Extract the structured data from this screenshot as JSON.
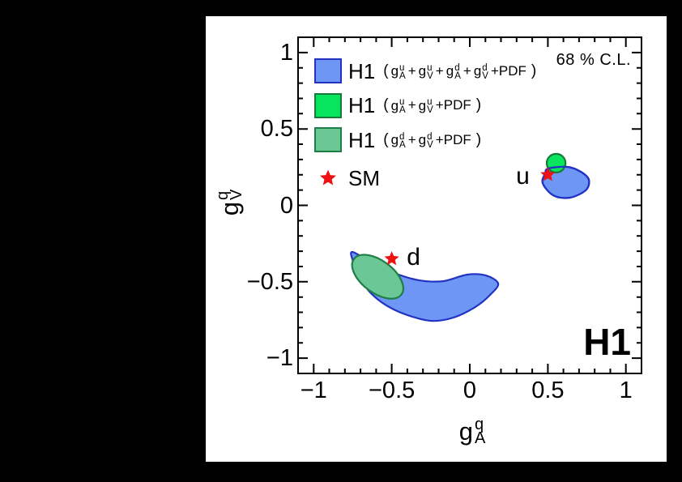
{
  "colors": {
    "background": "#000000",
    "canvas": "#ffffff",
    "frame": "#000000",
    "text": "#000000",
    "blue_fill": "#6e97f5",
    "blue_line": "#2233c4",
    "green_fill": "#07e55f",
    "green_line": "#187b39",
    "seagreen_fill": "#6bc795",
    "seagreen_line": "#1f7d46",
    "star_red": "#ee1111"
  },
  "chart_data": {
    "type": "contour-regions",
    "confidence_label": "68 % C.L.",
    "experiment_label": "H1",
    "xlabel": {
      "base": "g",
      "sup": "q",
      "sub": "A"
    },
    "ylabel": {
      "base": "g",
      "sup": "q",
      "sub": "V"
    },
    "xlim": [
      -1.1,
      1.1
    ],
    "ylim": [
      -1.1,
      1.1
    ],
    "x_ticks": [
      {
        "value": -1,
        "label": "−1"
      },
      {
        "value": -0.5,
        "label": "−0.5"
      },
      {
        "value": 0,
        "label": "0"
      },
      {
        "value": 0.5,
        "label": "0.5"
      },
      {
        "value": 1,
        "label": "1"
      }
    ],
    "y_ticks": [
      {
        "value": -1,
        "label": "−1"
      },
      {
        "value": -0.5,
        "label": "−0.5"
      },
      {
        "value": 0,
        "label": "0"
      },
      {
        "value": 0.5,
        "label": "0.5"
      },
      {
        "value": 1,
        "label": "1"
      }
    ],
    "minor_step": 0.1,
    "regions": [
      {
        "id": "combined_fit_d",
        "quark": "d",
        "fit": "gA_u+gV_u+gA_d+gV_d+PDF",
        "style": "blue",
        "restroke": false,
        "outline": [
          [
            -0.752,
            -0.305
          ],
          [
            -0.623,
            -0.379
          ],
          [
            -0.483,
            -0.443
          ],
          [
            -0.327,
            -0.49
          ],
          [
            -0.171,
            -0.496
          ],
          [
            -0.016,
            -0.453
          ],
          [
            0.104,
            -0.459
          ],
          [
            0.182,
            -0.512
          ],
          [
            0.13,
            -0.586
          ],
          [
            0.036,
            -0.665
          ],
          [
            -0.104,
            -0.734
          ],
          [
            -0.244,
            -0.756
          ],
          [
            -0.4,
            -0.718
          ],
          [
            -0.534,
            -0.655
          ],
          [
            -0.638,
            -0.57
          ],
          [
            -0.711,
            -0.464
          ],
          [
            -0.747,
            -0.369
          ]
        ]
      },
      {
        "id": "d_only_fit",
        "quark": "d",
        "fit": "gA_d+gV_d+PDF",
        "style": "seagreen",
        "ellipse": {
          "cx": -0.59,
          "cy": -0.467,
          "rx": 0.19,
          "ry": 0.105,
          "angle_deg": -37
        }
      },
      {
        "id": "combined_fit_u",
        "quark": "u",
        "fit": "gA_u+gV_u+gA_d+gV_d+PDF",
        "style": "blue",
        "restroke": true,
        "outline": [
          [
            0.503,
            0.241
          ],
          [
            0.623,
            0.252
          ],
          [
            0.711,
            0.22
          ],
          [
            0.763,
            0.167
          ],
          [
            0.742,
            0.098
          ],
          [
            0.638,
            0.05
          ],
          [
            0.534,
            0.066
          ],
          [
            0.467,
            0.146
          ],
          [
            0.483,
            0.209
          ]
        ]
      },
      {
        "id": "u_only_fit",
        "quark": "u",
        "fit": "gA_u+gV_u+PDF",
        "style": "green",
        "ellipse": {
          "cx": 0.553,
          "cy": 0.276,
          "rx": 0.06,
          "ry": 0.061,
          "angle_deg": 0
        }
      }
    ],
    "sm_points": [
      {
        "quark": "u",
        "gA": 0.5,
        "gV": 0.2
      },
      {
        "quark": "d",
        "gA": -0.5,
        "gV": -0.35
      }
    ],
    "quark_labels": [
      {
        "text": "u",
        "x": 0.34,
        "y": 0.19
      },
      {
        "text": "d",
        "x": -0.36,
        "y": -0.34
      }
    ]
  },
  "legend": {
    "items": [
      {
        "kind": "region",
        "label": "H1",
        "style": "blue",
        "formula": [
          {
            "paren": "("
          },
          {
            "b": "g",
            "sup": "u",
            "sub": "A"
          },
          {
            "t": "+"
          },
          {
            "b": "g",
            "sup": "u",
            "sub": "V"
          },
          {
            "t": "+"
          },
          {
            "b": "g",
            "sup": "d",
            "sub": "A"
          },
          {
            "t": "+"
          },
          {
            "b": "g",
            "sup": "d",
            "sub": "V"
          },
          {
            "t": "+PDF"
          },
          {
            "paren": ")"
          }
        ]
      },
      {
        "kind": "region",
        "label": "H1",
        "style": "green",
        "formula": [
          {
            "paren": "("
          },
          {
            "b": "g",
            "sup": "u",
            "sub": "A"
          },
          {
            "t": "+"
          },
          {
            "b": "g",
            "sup": "u",
            "sub": "V"
          },
          {
            "t": "+PDF"
          },
          {
            "paren": ")"
          }
        ]
      },
      {
        "kind": "region",
        "label": "H1",
        "style": "seagreen",
        "formula": [
          {
            "paren": "("
          },
          {
            "b": "g",
            "sup": "d",
            "sub": "A"
          },
          {
            "t": "+"
          },
          {
            "b": "g",
            "sup": "d",
            "sub": "V"
          },
          {
            "t": "+PDF"
          },
          {
            "paren": ")"
          }
        ]
      },
      {
        "kind": "marker",
        "label": "SM",
        "marker": "red-star"
      }
    ]
  }
}
